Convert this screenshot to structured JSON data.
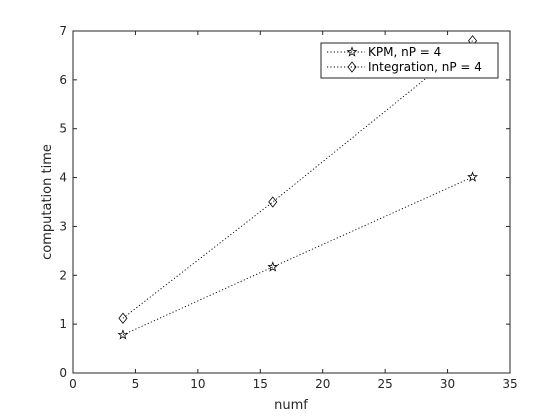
{
  "chart_data": {
    "type": "line",
    "xlabel": "numf",
    "ylabel": "computation time",
    "xlim": [
      0,
      35
    ],
    "ylim": [
      0,
      7
    ],
    "xticks": [
      0,
      5,
      10,
      15,
      20,
      25,
      30,
      35
    ],
    "yticks": [
      0,
      1,
      2,
      3,
      4,
      5,
      6,
      7
    ],
    "grid": false,
    "legend_position": "top-right",
    "series": [
      {
        "name": "KPM, nP = 4",
        "marker": "pentagram",
        "line_style": "dotted",
        "color": "#000000",
        "x": [
          4,
          16,
          32
        ],
        "y": [
          0.78,
          2.17,
          4.01
        ]
      },
      {
        "name": "Integration, nP = 4",
        "marker": "diamond",
        "line_style": "dotted",
        "color": "#000000",
        "x": [
          4,
          16,
          32
        ],
        "y": [
          1.12,
          3.5,
          6.8
        ]
      }
    ]
  }
}
